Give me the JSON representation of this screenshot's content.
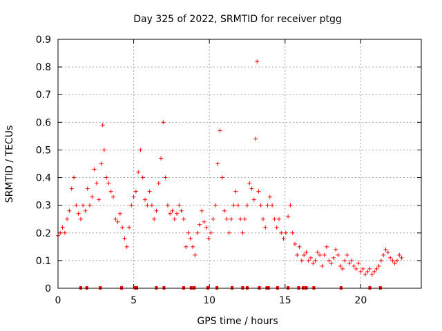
{
  "chart_data": {
    "type": "scatter",
    "title": "Day 325 of 2022, SRMTID for receiver ptgg",
    "xlabel": "GPS time / hours",
    "ylabel": "SRMTID / TECUs",
    "xlim": [
      0,
      24
    ],
    "ylim": [
      0,
      0.9
    ],
    "x_ticks": [
      0,
      5,
      10,
      15,
      20
    ],
    "x_tick_labels": [
      "0",
      "5",
      "10",
      "15",
      "20"
    ],
    "y_ticks": [
      0,
      0.1,
      0.2,
      0.3,
      0.4,
      0.5,
      0.6,
      0.7,
      0.8,
      0.9
    ],
    "y_tick_labels": [
      "0",
      "0.1",
      "0.2",
      "0.3",
      "0.4",
      "0.5",
      "0.6",
      "0.7",
      "0.8",
      "0.9"
    ],
    "grid": true,
    "marker": "+",
    "color": "#ff0000",
    "series": [
      {
        "name": "SRMTID",
        "x": [
          0.0,
          0.15,
          0.3,
          0.45,
          0.6,
          0.75,
          0.9,
          1.05,
          1.2,
          1.35,
          1.5,
          1.65,
          1.8,
          1.95,
          2.1,
          2.25,
          2.4,
          2.55,
          2.7,
          2.85,
          2.95,
          3.05,
          3.2,
          3.35,
          3.5,
          3.65,
          3.8,
          3.95,
          4.1,
          4.25,
          4.4,
          4.55,
          4.7,
          4.85,
          5.0,
          5.15,
          5.3,
          5.45,
          5.6,
          5.75,
          5.9,
          6.05,
          6.2,
          6.35,
          6.5,
          6.65,
          6.8,
          6.95,
          7.1,
          7.25,
          7.4,
          7.55,
          7.7,
          7.85,
          8.0,
          8.15,
          8.3,
          8.45,
          8.6,
          8.75,
          8.9,
          9.05,
          9.2,
          9.35,
          9.5,
          9.65,
          9.8,
          9.95,
          10.1,
          10.25,
          10.4,
          10.55,
          10.7,
          10.85,
          11.0,
          11.15,
          11.3,
          11.45,
          11.6,
          11.75,
          11.9,
          12.05,
          12.2,
          12.35,
          12.5,
          12.65,
          12.8,
          12.95,
          13.05,
          13.15,
          13.25,
          13.4,
          13.55,
          13.7,
          13.85,
          14.0,
          14.15,
          14.3,
          14.45,
          14.6,
          14.75,
          14.9,
          15.05,
          15.2,
          15.35,
          15.5,
          15.65,
          15.8,
          15.95,
          16.1,
          16.25,
          16.4,
          16.55,
          16.7,
          16.85,
          17.0,
          17.15,
          17.3,
          17.45,
          17.6,
          17.75,
          17.9,
          18.05,
          18.2,
          18.35,
          18.5,
          18.65,
          18.8,
          18.95,
          19.1,
          19.25,
          19.4,
          19.55,
          19.7,
          19.85,
          20.0,
          20.15,
          20.3,
          20.45,
          20.6,
          20.75,
          20.9,
          21.05,
          21.2,
          21.35,
          21.5,
          21.65,
          21.8,
          21.95,
          22.1,
          22.25,
          22.4,
          22.55,
          22.7
        ],
        "values": [
          0.19,
          0.2,
          0.22,
          0.2,
          0.25,
          0.28,
          0.36,
          0.4,
          0.3,
          0.27,
          0.25,
          0.3,
          0.28,
          0.36,
          0.3,
          0.33,
          0.43,
          0.38,
          0.32,
          0.45,
          0.59,
          0.5,
          0.4,
          0.38,
          0.35,
          0.33,
          0.25,
          0.24,
          0.27,
          0.22,
          0.18,
          0.15,
          0.22,
          0.3,
          0.33,
          0.35,
          0.42,
          0.5,
          0.4,
          0.32,
          0.3,
          0.35,
          0.3,
          0.25,
          0.28,
          0.38,
          0.47,
          0.6,
          0.4,
          0.3,
          0.27,
          0.28,
          0.25,
          0.27,
          0.3,
          0.28,
          0.25,
          0.15,
          0.2,
          0.18,
          0.15,
          0.12,
          0.2,
          0.23,
          0.28,
          0.24,
          0.22,
          0.18,
          0.2,
          0.25,
          0.3,
          0.45,
          0.57,
          0.4,
          0.28,
          0.25,
          0.2,
          0.25,
          0.3,
          0.35,
          0.3,
          0.25,
          0.2,
          0.25,
          0.3,
          0.38,
          0.36,
          0.32,
          0.54,
          0.82,
          0.35,
          0.3,
          0.25,
          0.22,
          0.3,
          0.33,
          0.3,
          0.25,
          0.22,
          0.25,
          0.2,
          0.18,
          0.2,
          0.26,
          0.3,
          0.2,
          0.16,
          0.12,
          0.15,
          0.1,
          0.12,
          0.13,
          0.1,
          0.11,
          0.09,
          0.1,
          0.13,
          0.12,
          0.08,
          0.12,
          0.15,
          0.1,
          0.09,
          0.11,
          0.14,
          0.12,
          0.08,
          0.07,
          0.1,
          0.12,
          0.09,
          0.1,
          0.08,
          0.07,
          0.09,
          0.06,
          0.07,
          0.05,
          0.06,
          0.07,
          0.05,
          0.06,
          0.07,
          0.08,
          0.1,
          0.12,
          0.14,
          0.13,
          0.11,
          0.1,
          0.09,
          0.1,
          0.12,
          0.11
        ]
      },
      {
        "name": "zero-level markers",
        "x": [
          1.5,
          1.9,
          2.8,
          4.2,
          5.1,
          5.2,
          6.5,
          7.0,
          8.3,
          8.8,
          9.0,
          9.9,
          10.5,
          11.5,
          12.2,
          12.5,
          13.3,
          13.8,
          13.9,
          14.5,
          15.2,
          15.9,
          16.2,
          16.4,
          16.9,
          18.7,
          20.6,
          21.3
        ]
      }
    ]
  }
}
